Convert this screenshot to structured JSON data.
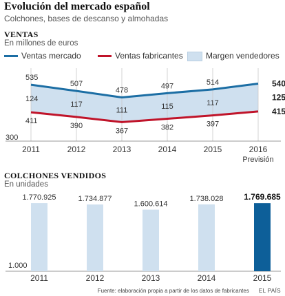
{
  "header": {
    "title": "Evolución del mercado español",
    "subtitle": "Colchones, bases de descanso y almohadas"
  },
  "ventas": {
    "section_title": "VENTAS",
    "section_unit": "En millones de euros",
    "legend": [
      "Ventas mercado",
      "Ventas fabricantes",
      "Margen vendedores"
    ]
  },
  "colchones": {
    "section_title": "COLCHONES VENDIDOS",
    "section_unit": "En unidades"
  },
  "footer": {
    "source": "Fuente: elaboración propia a partir de los datos de fabricantes",
    "brand": "EL PAÍS"
  },
  "colors": {
    "mercado": "#1c6ea4",
    "fabricantes": "#c0142a",
    "margen": "#cfe0ef",
    "bar": "#cfe0ef",
    "bar_highlight": "#0d5f99"
  },
  "chart_data": [
    {
      "type": "line",
      "x": [
        "2011",
        "2012",
        "2013",
        "2014",
        "2015",
        "2016"
      ],
      "x_sublabels": [
        "",
        "",
        "",
        "",
        "",
        "Previsión"
      ],
      "ylim": [
        300,
        560
      ],
      "y_min_label": "300",
      "series": [
        {
          "name": "Ventas mercado",
          "color": "#1c6ea4",
          "values": [
            535,
            507,
            478,
            497,
            514,
            540
          ],
          "labels": [
            "535",
            "507",
            "478",
            "497",
            "514",
            "540"
          ]
        },
        {
          "name": "Ventas fabricantes",
          "color": "#c0142a",
          "values": [
            411,
            390,
            367,
            382,
            397,
            415
          ],
          "labels": [
            "411",
            "390",
            "367",
            "382",
            "397",
            "415"
          ]
        },
        {
          "name": "Margen vendedores",
          "type": "area",
          "color": "#cfe0ef",
          "values": [
            124,
            117,
            111,
            115,
            117,
            125
          ],
          "labels": [
            "124",
            "117",
            "111",
            "115",
            "117",
            "125"
          ]
        }
      ]
    },
    {
      "type": "bar",
      "categories": [
        "2011",
        "2012",
        "2013",
        "2014",
        "2015"
      ],
      "values": [
        1770925,
        1734877,
        1600614,
        1738028,
        1769685
      ],
      "value_labels": [
        "1.770.925",
        "1.734.877",
        "1.600.614",
        "1.738.028",
        "1.769.685"
      ],
      "ylim": [
        1000,
        1790000
      ],
      "y_min_label": "1.000",
      "highlight_index": 4
    }
  ]
}
